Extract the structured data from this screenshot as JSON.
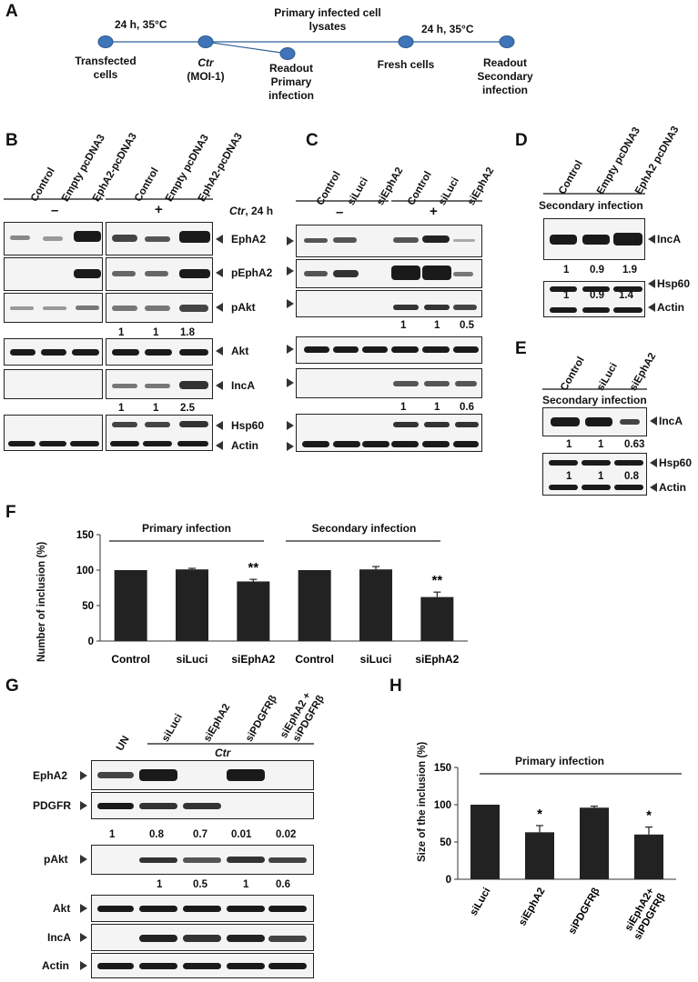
{
  "panels": {
    "A": "A",
    "B": "B",
    "C": "C",
    "D": "D",
    "E": "E",
    "F": "F",
    "G": "G",
    "H": "H"
  },
  "a": {
    "t1": "24 h, 35°C",
    "t2": "24 h, 35°C",
    "center_line1": "Primary infected cell",
    "center_line2": "lysates",
    "n1_l1": "Transfected",
    "n1_l2": "cells",
    "ctr": "Ctr",
    "moi": "(MOI-1)",
    "r1_l1": "Readout",
    "r1_l2": "Primary",
    "r1_l3": "infection",
    "fresh": "Fresh cells",
    "r2_l1": "Readout",
    "r2_l2": "Secondary",
    "r2_l3": "infection"
  },
  "b": {
    "lanes": [
      "Control",
      "Empty pcDNA3",
      "EphA2-pcDNA3",
      "Control",
      "Empty pcDNA3",
      "EphA2-pcDNA3"
    ],
    "minus": "–",
    "plus": "+",
    "ctr": "Ctr",
    "ctr_tail": ", 24 h",
    "rows": [
      "EphA2",
      "pEphA2",
      "pAkt",
      "Akt",
      "IncA",
      "Hsp60",
      "Actin"
    ],
    "pakt_q": [
      "1",
      "1",
      "1.8"
    ],
    "inca_q": [
      "1",
      "1",
      "2.5"
    ]
  },
  "c": {
    "lanes": [
      "Control",
      "siLuci",
      "siEphA2",
      "Control",
      "siLuci",
      "siEphA2"
    ],
    "minus": "–",
    "plus": "+",
    "pakt_q": [
      "1",
      "1",
      "0.5"
    ],
    "inca_q": [
      "1",
      "1",
      "0.6"
    ]
  },
  "d": {
    "lanes": [
      "Control",
      "Empty pcDNA3",
      "EphA2 pcDNA3"
    ],
    "title": "Secondary  infection",
    "rows": [
      "IncA",
      "Hsp60",
      "Actin"
    ],
    "inca_q": [
      "1",
      "0.9",
      "1.9"
    ],
    "hsp_q": [
      "1",
      "0.9",
      "1.4"
    ]
  },
  "e": {
    "lanes": [
      "Control",
      "siLuci",
      "siEphA2"
    ],
    "title": "Secondary  infection",
    "rows": [
      "IncA",
      "Hsp60",
      "Actin"
    ],
    "inca_q": [
      "1",
      "1",
      "0.63"
    ],
    "hsp_q": [
      "1",
      "1",
      "0.8"
    ]
  },
  "chart_data": [
    {
      "type": "bar",
      "panel": "F",
      "ylabel": "Number of inclusion (%)",
      "ylim": [
        0,
        150
      ],
      "yticks": [
        "0",
        "50",
        "100",
        "150"
      ],
      "categories": [
        "Control",
        "siLuci",
        "siEphA2",
        "Control",
        "siLuci",
        "siEphA2"
      ],
      "values": [
        100,
        101,
        84,
        100,
        101,
        62
      ],
      "errors": [
        0,
        1.5,
        3,
        0,
        4,
        7
      ],
      "groups": [
        "Primary infection",
        "Secondary infection"
      ],
      "significance": [
        "",
        "",
        "**",
        "",
        "",
        "**"
      ],
      "color": "#222222"
    },
    {
      "type": "bar",
      "panel": "H",
      "title": "Primary infection",
      "ylabel": "Size of the inclusion (%)",
      "ylim": [
        0,
        150
      ],
      "yticks": [
        "0",
        "50",
        "100",
        "150"
      ],
      "categories": [
        "siLuci",
        "siEphA2",
        "siPDGFRβ",
        "siEphA2+ siPDGFRβ"
      ],
      "values": [
        100,
        63,
        96,
        60
      ],
      "errors": [
        0,
        9,
        2,
        10
      ],
      "significance": [
        "",
        "*",
        "",
        "*"
      ],
      "color": "#222222"
    }
  ],
  "g": {
    "lanes": [
      "UN",
      "siLuci",
      "siEphA2",
      "siPDGFRβ",
      "siEphA2 +",
      "siPDGFRβ"
    ],
    "ctr": "Ctr",
    "rows": [
      "EphA2",
      "PDGFR",
      "pAkt",
      "Akt",
      "IncA",
      "Actin"
    ],
    "pdgfr_q": [
      "1",
      "0.8",
      "0.7",
      "0.01",
      "0.02"
    ],
    "pakt_q": [
      "1",
      "0.5",
      "1",
      "0.6"
    ]
  }
}
